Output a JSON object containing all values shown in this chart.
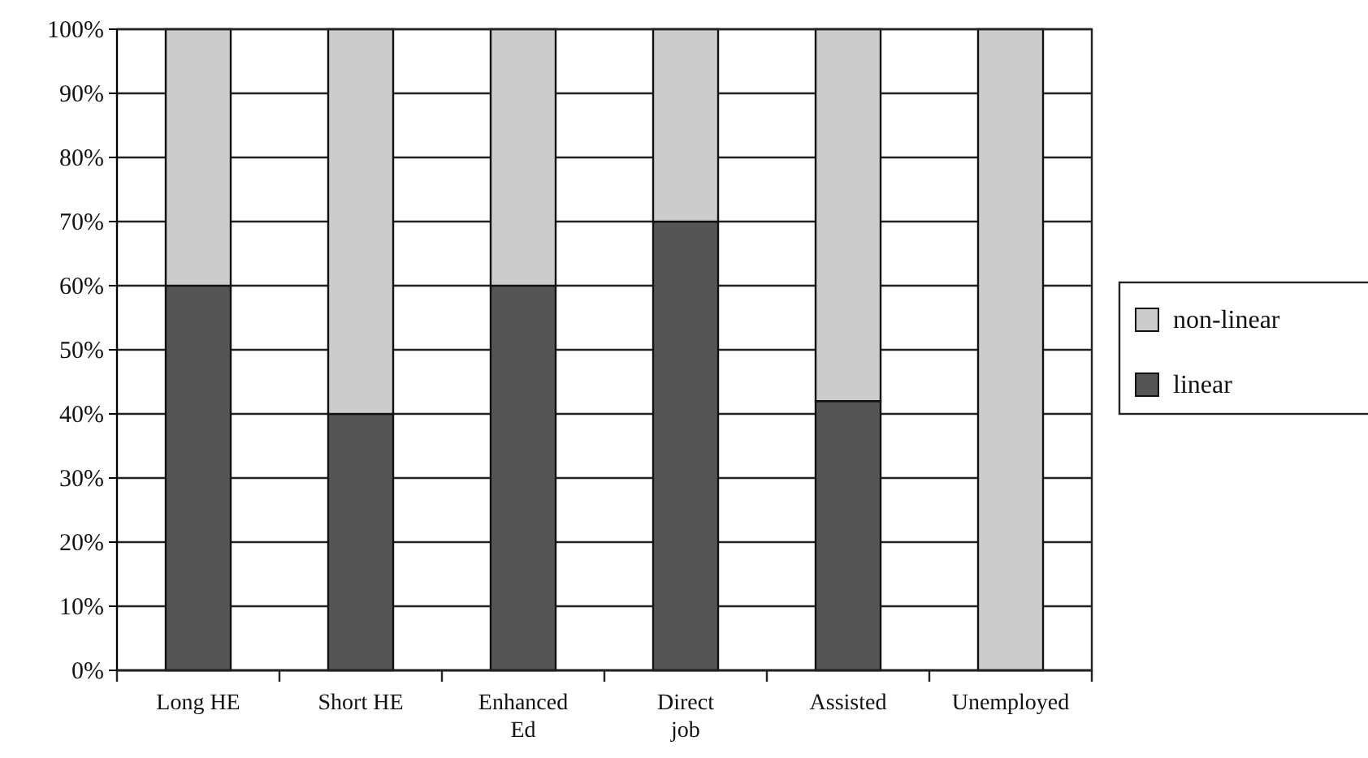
{
  "chart_data": {
    "type": "bar",
    "stacked": true,
    "categories": [
      "Long HE",
      "Short HE",
      "Enhanced Ed",
      "Direct job",
      "Assisted",
      "Unemployed"
    ],
    "series": [
      {
        "name": "linear",
        "color": "#555555",
        "values": [
          60,
          40,
          60,
          70,
          42,
          0
        ]
      },
      {
        "name": "non-linear",
        "color": "#cccccc",
        "values": [
          40,
          60,
          40,
          30,
          58,
          100
        ]
      }
    ],
    "ylim": [
      0,
      100
    ],
    "yticks": [
      {
        "value": 0,
        "label": "0%"
      },
      {
        "value": 10,
        "label": "10%"
      },
      {
        "value": 20,
        "label": "20%"
      },
      {
        "value": 30,
        "label": "30%"
      },
      {
        "value": 40,
        "label": "40%"
      },
      {
        "value": 50,
        "label": "50%"
      },
      {
        "value": 60,
        "label": "60%"
      },
      {
        "value": 70,
        "label": "70%"
      },
      {
        "value": 80,
        "label": "80%"
      },
      {
        "value": 90,
        "label": "90%"
      },
      {
        "value": 100,
        "label": "100%"
      }
    ],
    "grid": "y",
    "legend": "right"
  }
}
